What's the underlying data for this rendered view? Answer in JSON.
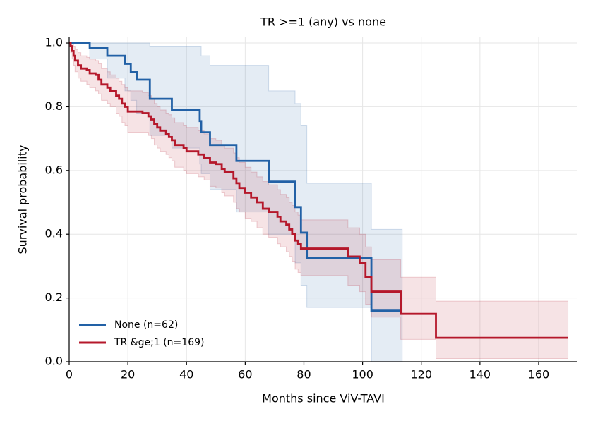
{
  "chart_data": {
    "type": "km",
    "title": "TR >=1 (any) vs none",
    "x_label": "Months since ViV-TAVI",
    "y_label": "Survival probability",
    "xlim": [
      0,
      173
    ],
    "ylim": [
      0,
      1.02
    ],
    "xticks": [
      0,
      20,
      40,
      60,
      80,
      100,
      120,
      140,
      160
    ],
    "yticks": [
      {
        "value": 0,
        "label": "0.0"
      },
      {
        "value": 0.2,
        "label": "0.2"
      },
      {
        "value": 0.4,
        "label": "0.4"
      },
      {
        "value": 0.6,
        "label": "0.6"
      },
      {
        "value": 0.8,
        "label": "0.8"
      },
      {
        "value": 1,
        "label": "1.0"
      }
    ],
    "grid": true,
    "legend": "lower left",
    "series": [
      {
        "name": "None (n=62)",
        "color": "#2261a6",
        "x": [
          0,
          7,
          13,
          19,
          21,
          23,
          27.5,
          35,
          44.5,
          45,
          48,
          57,
          68,
          77,
          79,
          81,
          103,
          113.5
        ],
        "values": [
          1.0,
          0.984,
          0.96,
          0.935,
          0.91,
          0.885,
          0.825,
          0.79,
          0.755,
          0.72,
          0.68,
          0.63,
          0.565,
          0.485,
          0.405,
          0.325,
          0.16,
          0.16
        ],
        "ci_lower": [
          1.0,
          0.95,
          0.89,
          0.85,
          0.82,
          0.78,
          0.71,
          0.67,
          0.62,
          0.59,
          0.54,
          0.47,
          0.4,
          0.31,
          0.24,
          0.17,
          0.0,
          0.0
        ],
        "ci_upper": [
          1.0,
          1.0,
          1.0,
          1.0,
          1.0,
          1.0,
          0.99,
          0.99,
          0.99,
          0.96,
          0.93,
          0.93,
          0.85,
          0.81,
          0.74,
          0.56,
          0.415,
          0.415
        ]
      },
      {
        "name": "TR &ge;1 (n=169)",
        "color": "#b5182b",
        "x": [
          0,
          0.5,
          1,
          1.5,
          2,
          3,
          4,
          6,
          7,
          9,
          10,
          11,
          13,
          14,
          16,
          17,
          18,
          19,
          20,
          25,
          27,
          28,
          29,
          30,
          31,
          33,
          34,
          35,
          36,
          39,
          40,
          44,
          46,
          48,
          50,
          52,
          53,
          56,
          57,
          58,
          60,
          62,
          64,
          66,
          68,
          71,
          72,
          74,
          75,
          76,
          77,
          78,
          79,
          95,
          99,
          101,
          103,
          113,
          125,
          170
        ],
        "values": [
          1.0,
          0.99,
          0.975,
          0.96,
          0.945,
          0.93,
          0.92,
          0.915,
          0.905,
          0.9,
          0.885,
          0.87,
          0.86,
          0.85,
          0.835,
          0.825,
          0.81,
          0.8,
          0.785,
          0.78,
          0.77,
          0.76,
          0.745,
          0.735,
          0.725,
          0.715,
          0.705,
          0.695,
          0.68,
          0.67,
          0.66,
          0.65,
          0.64,
          0.625,
          0.62,
          0.605,
          0.595,
          0.575,
          0.56,
          0.545,
          0.53,
          0.515,
          0.5,
          0.48,
          0.47,
          0.455,
          0.44,
          0.43,
          0.415,
          0.4,
          0.38,
          0.37,
          0.355,
          0.33,
          0.31,
          0.265,
          0.22,
          0.15,
          0.075,
          0.075
        ],
        "ci_lower": [
          1.0,
          0.97,
          0.95,
          0.93,
          0.91,
          0.89,
          0.88,
          0.87,
          0.86,
          0.85,
          0.84,
          0.82,
          0.81,
          0.8,
          0.78,
          0.77,
          0.75,
          0.74,
          0.72,
          0.72,
          0.71,
          0.7,
          0.68,
          0.67,
          0.66,
          0.65,
          0.64,
          0.63,
          0.61,
          0.6,
          0.59,
          0.58,
          0.57,
          0.55,
          0.545,
          0.53,
          0.52,
          0.5,
          0.48,
          0.47,
          0.45,
          0.44,
          0.42,
          0.4,
          0.39,
          0.37,
          0.36,
          0.345,
          0.33,
          0.315,
          0.29,
          0.28,
          0.27,
          0.24,
          0.22,
          0.18,
          0.14,
          0.07,
          0.01,
          0.01
        ],
        "ci_upper": [
          1.0,
          1.0,
          1.0,
          0.99,
          0.98,
          0.97,
          0.96,
          0.955,
          0.95,
          0.945,
          0.935,
          0.92,
          0.91,
          0.9,
          0.89,
          0.88,
          0.87,
          0.86,
          0.85,
          0.845,
          0.835,
          0.825,
          0.81,
          0.8,
          0.79,
          0.78,
          0.775,
          0.765,
          0.75,
          0.74,
          0.735,
          0.725,
          0.715,
          0.7,
          0.695,
          0.68,
          0.67,
          0.655,
          0.64,
          0.625,
          0.61,
          0.595,
          0.58,
          0.565,
          0.555,
          0.54,
          0.525,
          0.515,
          0.5,
          0.49,
          0.47,
          0.46,
          0.445,
          0.42,
          0.4,
          0.36,
          0.32,
          0.265,
          0.19,
          0.19
        ]
      }
    ]
  }
}
